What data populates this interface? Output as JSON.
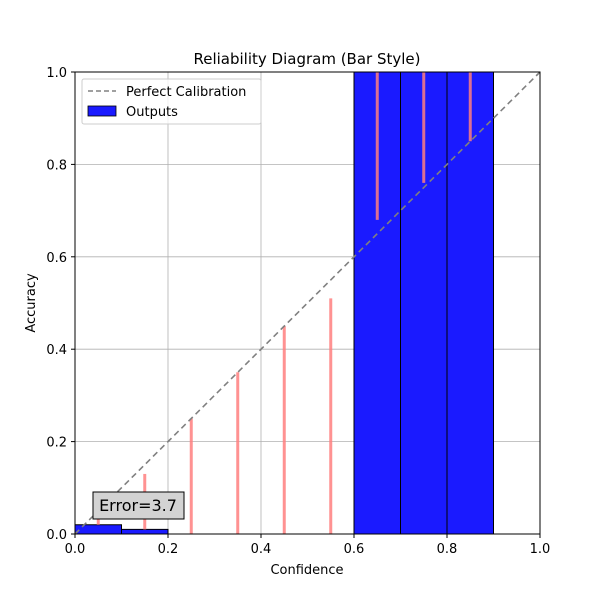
{
  "chart_data": {
    "type": "bar",
    "title": "Reliability Diagram (Bar Style)",
    "xlabel": "Confidence",
    "ylabel": "Accuracy",
    "xlim": [
      0,
      1
    ],
    "ylim": [
      0,
      1
    ],
    "grid": true,
    "xticks": [
      "0.0",
      "0.2",
      "0.4",
      "0.6",
      "0.8",
      "1.0"
    ],
    "yticks": [
      "0.0",
      "0.2",
      "0.4",
      "0.6",
      "0.8",
      "1.0"
    ],
    "legend": {
      "placement": "top-left",
      "entries": [
        {
          "label": "Perfect Calibration",
          "style": "dashed-line",
          "color": "#808080"
        },
        {
          "label": "Outputs",
          "style": "bar",
          "color": "#1a1aff"
        }
      ]
    },
    "bins": [
      {
        "bin_start": 0.0,
        "bin_end": 0.1,
        "accuracy": 0.02,
        "gap_from": 0.02,
        "gap_to": 0.05
      },
      {
        "bin_start": 0.1,
        "bin_end": 0.2,
        "accuracy": 0.01,
        "gap_from": 0.01,
        "gap_to": 0.13
      },
      {
        "bin_start": 0.2,
        "bin_end": 0.3,
        "accuracy": 0.0,
        "gap_from": 0.0,
        "gap_to": 0.25
      },
      {
        "bin_start": 0.3,
        "bin_end": 0.4,
        "accuracy": 0.0,
        "gap_from": 0.0,
        "gap_to": 0.35
      },
      {
        "bin_start": 0.4,
        "bin_end": 0.5,
        "accuracy": 0.0,
        "gap_from": 0.0,
        "gap_to": 0.45
      },
      {
        "bin_start": 0.5,
        "bin_end": 0.6,
        "accuracy": 0.0,
        "gap_from": 0.0,
        "gap_to": 0.51
      },
      {
        "bin_start": 0.6,
        "bin_end": 0.7,
        "accuracy": 1.0,
        "gap_from": 0.68,
        "gap_to": 1.0
      },
      {
        "bin_start": 0.7,
        "bin_end": 0.8,
        "accuracy": 1.0,
        "gap_from": 0.76,
        "gap_to": 1.0
      },
      {
        "bin_start": 0.8,
        "bin_end": 0.9,
        "accuracy": 1.0,
        "gap_from": 0.85,
        "gap_to": 1.0
      }
    ],
    "annotation": "Error=3.7",
    "colors": {
      "bar": "#1a1aff",
      "gap": "#ff7f7f",
      "diagonal": "#808080",
      "grid": "#b0b0b0",
      "annotation_bg": "#d3d3d3"
    }
  }
}
